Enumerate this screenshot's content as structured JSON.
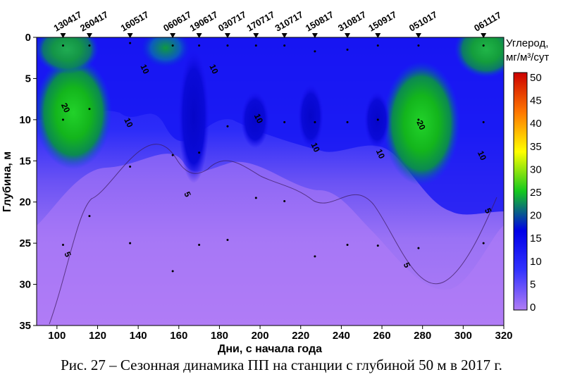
{
  "chart_data": {
    "type": "heatmap",
    "xlabel": "Дни, с начала года",
    "ylabel": "Глубина, м",
    "xlim": [
      90,
      320
    ],
    "ylim": [
      0,
      35
    ],
    "x_ticks": [
      "100",
      "120",
      "140",
      "160",
      "180",
      "200",
      "220",
      "240",
      "260",
      "280",
      "300",
      "320"
    ],
    "y_ticks": [
      "0",
      "5",
      "10",
      "15",
      "20",
      "25",
      "30",
      "35"
    ],
    "colorbar": {
      "title_line1": "Углерод,",
      "title_line2": "мг/м³/сут",
      "ticks": [
        "50",
        "45",
        "40",
        "35",
        "30",
        "25",
        "20",
        "15",
        "10",
        "5",
        "0"
      ],
      "range": [
        0,
        50
      ],
      "colors": [
        "#b07cf5",
        "#3333ff",
        "#0000e8",
        "#14c81e",
        "#ffff00",
        "#ff7700",
        "#cc0000"
      ]
    },
    "stations": [
      {
        "label": "130417",
        "day": 103
      },
      {
        "label": "260417",
        "day": 116
      },
      {
        "label": "160517",
        "day": 136
      },
      {
        "label": "060617",
        "day": 157
      },
      {
        "label": "190617",
        "day": 170
      },
      {
        "label": "030717",
        "day": 184
      },
      {
        "label": "170717",
        "day": 198
      },
      {
        "label": "310717",
        "day": 212
      },
      {
        "label": "150817",
        "day": 227
      },
      {
        "label": "310817",
        "day": 243
      },
      {
        "label": "150917",
        "day": 258
      },
      {
        "label": "051017",
        "day": 278
      },
      {
        "label": "061117",
        "day": 310
      }
    ],
    "contour_labels": [
      {
        "text": "20",
        "x": 103,
        "y": 8.7
      },
      {
        "text": "10",
        "x": 134,
        "y": 10.5
      },
      {
        "text": "10",
        "x": 142,
        "y": 4.0
      },
      {
        "text": "10",
        "x": 176,
        "y": 4.0
      },
      {
        "text": "10",
        "x": 198,
        "y": 10.0
      },
      {
        "text": "10",
        "x": 226,
        "y": 13.5
      },
      {
        "text": "10",
        "x": 258,
        "y": 14.3
      },
      {
        "text": "20",
        "x": 278,
        "y": 10.8
      },
      {
        "text": "10",
        "x": 308,
        "y": 14.5
      },
      {
        "text": "5",
        "x": 104,
        "y": 26.5
      },
      {
        "text": "5",
        "x": 163,
        "y": 19.2
      },
      {
        "text": "5",
        "x": 271,
        "y": 27.8
      },
      {
        "text": "5",
        "x": 311,
        "y": 21.2
      }
    ]
  },
  "caption": "Рис. 27 – Сезонная динамика ПП на станции с глубиной 50 м в 2017 г."
}
